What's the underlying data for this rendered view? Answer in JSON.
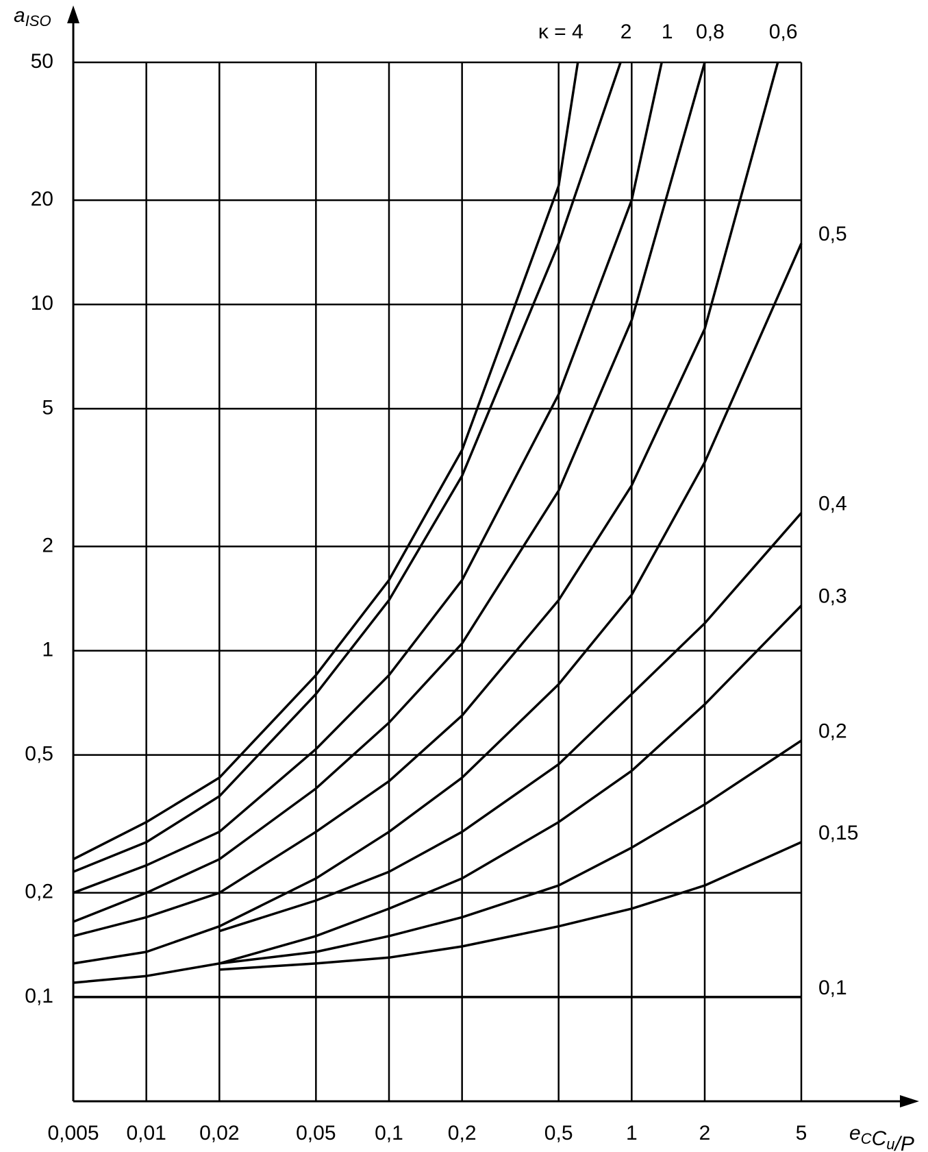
{
  "chart_data": {
    "type": "line",
    "ylabel": {
      "text": "a",
      "sub": "ISO"
    },
    "xlabel": [
      {
        "text": "e",
        "sub": "C"
      },
      {
        "text": "C",
        "sub": "u"
      },
      {
        "text": "/P",
        "sub": null
      }
    ],
    "xscale": "log",
    "yscale": "log",
    "xlim": [
      0.005,
      5
    ],
    "ylim": [
      0.05,
      50
    ],
    "xticks": [
      {
        "value": 0.005,
        "label": "0,005"
      },
      {
        "value": 0.01,
        "label": "0,01"
      },
      {
        "value": 0.02,
        "label": "0,02"
      },
      {
        "value": 0.05,
        "label": "0,05"
      },
      {
        "value": 0.1,
        "label": "0,1"
      },
      {
        "value": 0.2,
        "label": "0,2"
      },
      {
        "value": 0.5,
        "label": "0,5"
      },
      1,
      2,
      5
    ],
    "yticks": [
      {
        "value": 0.1,
        "label": "0,1"
      },
      {
        "value": 0.2,
        "label": "0,2"
      },
      {
        "value": 0.5,
        "label": "0,5"
      },
      1,
      2,
      5,
      10,
      20,
      50
    ],
    "grid": true,
    "series": [
      {
        "name": "κ = 4",
        "color": "#000000",
        "x": [
          0.005,
          0.01,
          0.02,
          0.05,
          0.1,
          0.2,
          0.5,
          0.6
        ],
        "values": [
          0.25,
          0.32,
          0.43,
          0.85,
          1.6,
          3.8,
          22,
          50
        ]
      },
      {
        "name": "2",
        "color": "#000000",
        "x": [
          0.005,
          0.01,
          0.02,
          0.05,
          0.1,
          0.2,
          0.5,
          0.9
        ],
        "values": [
          0.23,
          0.28,
          0.38,
          0.75,
          1.4,
          3.2,
          15,
          50
        ]
      },
      {
        "name": "1",
        "color": "#000000",
        "x": [
          0.005,
          0.01,
          0.02,
          0.05,
          0.1,
          0.2,
          0.5,
          1,
          1.33
        ],
        "values": [
          0.2,
          0.24,
          0.3,
          0.52,
          0.85,
          1.6,
          5.5,
          20,
          50
        ]
      },
      {
        "name": "0,8",
        "color": "#000000",
        "x": [
          0.005,
          0.01,
          0.02,
          0.05,
          0.1,
          0.2,
          0.5,
          1,
          2
        ],
        "values": [
          0.165,
          0.2,
          0.25,
          0.4,
          0.62,
          1.05,
          2.9,
          9,
          50
        ]
      },
      {
        "name": "0,6",
        "color": "#000000",
        "x": [
          0.005,
          0.01,
          0.02,
          0.05,
          0.1,
          0.2,
          0.5,
          1,
          2,
          4
        ],
        "values": [
          0.15,
          0.17,
          0.2,
          0.3,
          0.42,
          0.65,
          1.4,
          3,
          8.5,
          50
        ]
      },
      {
        "name": "0,5",
        "color": "#000000",
        "x": [
          0.005,
          0.01,
          0.02,
          0.05,
          0.1,
          0.2,
          0.5,
          1,
          2,
          5
        ],
        "values": [
          0.125,
          0.135,
          0.16,
          0.22,
          0.3,
          0.43,
          0.8,
          1.45,
          3.5,
          15
        ]
      },
      {
        "name": "0,4",
        "color": "#000000",
        "x": [
          0.02,
          0.05,
          0.1,
          0.2,
          0.5,
          1,
          2,
          5
        ],
        "values": [
          0.155,
          0.19,
          0.23,
          0.3,
          0.47,
          0.75,
          1.2,
          2.5
        ]
      },
      {
        "name": "0,3",
        "color": "#000000",
        "x": [
          0.005,
          0.01,
          0.02,
          0.05,
          0.1,
          0.2,
          0.5,
          1,
          2,
          5
        ],
        "values": [
          0.11,
          0.115,
          0.125,
          0.15,
          0.18,
          0.22,
          0.32,
          0.45,
          0.7,
          1.35
        ]
      },
      {
        "name": "0,2",
        "color": "#000000",
        "x": [
          0.02,
          0.05,
          0.1,
          0.2,
          0.5,
          1,
          2,
          5
        ],
        "values": [
          0.125,
          0.135,
          0.15,
          0.17,
          0.21,
          0.27,
          0.36,
          0.55
        ]
      },
      {
        "name": "0,15",
        "color": "#000000",
        "x": [
          0.02,
          0.05,
          0.1,
          0.2,
          0.5,
          1,
          2,
          5
        ],
        "values": [
          0.12,
          0.125,
          0.13,
          0.14,
          0.16,
          0.18,
          0.21,
          0.28
        ]
      },
      {
        "name": "0,1",
        "color": "#000000",
        "x": [
          0.005,
          5
        ],
        "values": [
          0.1,
          0.1
        ]
      }
    ]
  }
}
